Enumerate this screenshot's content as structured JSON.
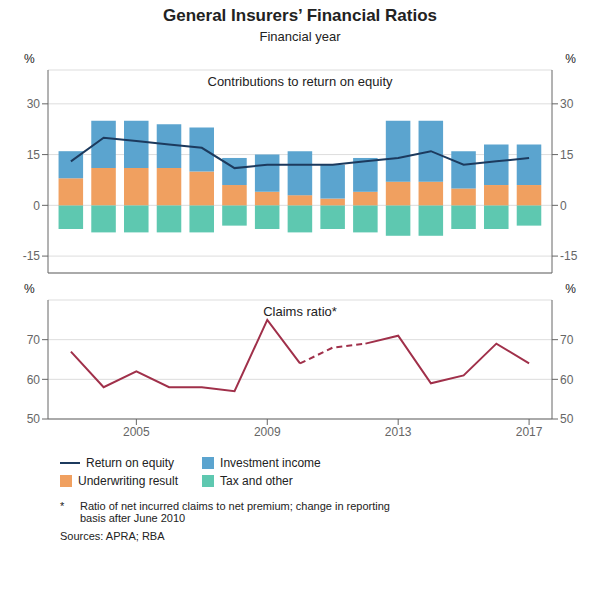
{
  "chart_data": [
    {
      "type": "bar",
      "title": "General Insurers’ Financial Ratios",
      "subtitle": "Financial year",
      "annotations": [
        "Contributions to return on equity"
      ],
      "x": [
        2003,
        2004,
        2005,
        2006,
        2007,
        2008,
        2009,
        2010,
        2011,
        2012,
        2013,
        2014,
        2015,
        2016,
        2017
      ],
      "series": [
        {
          "name": "Return on equity",
          "type": "line",
          "color": "#1C3A5E",
          "values": [
            13,
            20,
            19,
            18,
            17,
            11,
            12,
            12,
            12,
            13,
            14,
            16,
            12,
            13,
            14
          ]
        },
        {
          "name": "Investment income",
          "type": "bar",
          "color": "#5BA4CF",
          "values": [
            8,
            14,
            14,
            13,
            13,
            8,
            11,
            13,
            10,
            10,
            18,
            18,
            11,
            12,
            12
          ]
        },
        {
          "name": "Underwriting result",
          "type": "bar",
          "color": "#F0A060",
          "values": [
            8,
            11,
            11,
            11,
            10,
            6,
            4,
            3,
            2,
            4,
            7,
            7,
            5,
            6,
            6
          ]
        },
        {
          "name": "Tax and other",
          "type": "bar",
          "color": "#5EC8B0",
          "values": [
            -7,
            -8,
            -8,
            -8,
            -8,
            -6,
            -7,
            -8,
            -7,
            -8,
            -9,
            -9,
            -7,
            -7,
            -6
          ]
        }
      ],
      "stacked": true,
      "xlim": [
        2002.3,
        2017.7
      ],
      "ylim": [
        -20,
        40
      ],
      "yticks": [
        -15,
        0,
        15,
        30
      ],
      "ylabel": "%",
      "y2lim": [
        -20,
        40
      ],
      "y2ticks": [
        -15,
        0,
        15,
        30
      ],
      "y2label": "%",
      "grid": true,
      "tick_labels": "y",
      "legend": "bottom"
    },
    {
      "type": "line",
      "annotations": [
        "Claims ratio*",
        "*",
        "Ratio of net incurred claims to net premium; change in reporting\nbasis after June 2010",
        "Sources: APRA; RBA"
      ],
      "x": [
        2003,
        2004,
        2005,
        2006,
        2007,
        2008,
        2009,
        2010,
        2011,
        2012,
        2013,
        2014,
        2015,
        2016,
        2017
      ],
      "series": [
        {
          "color": "#A0304A",
          "line_style": "solid",
          "values": [
            67,
            58,
            62,
            58,
            58,
            57,
            75,
            64,
            null,
            null,
            null,
            null,
            null,
            null,
            null
          ]
        },
        {
          "color": "#A0304A",
          "line_style": "dashed",
          "values": [
            null,
            null,
            null,
            null,
            null,
            null,
            null,
            64,
            68,
            69,
            null,
            null,
            null,
            null,
            null
          ]
        },
        {
          "color": "#A0304A",
          "line_style": "solid",
          "values": [
            null,
            null,
            null,
            null,
            null,
            null,
            null,
            null,
            null,
            69,
            71,
            59,
            61,
            69,
            64
          ]
        }
      ],
      "xlim": [
        2002.3,
        2017.7
      ],
      "xticks": [
        2005,
        2009,
        2013,
        2017
      ],
      "ylim": [
        50,
        80
      ],
      "yticks": [
        50,
        60,
        70
      ],
      "ylabel": "%",
      "y2lim": [
        50,
        80
      ],
      "y2ticks": [
        50,
        60,
        70
      ],
      "y2label": "%",
      "grid": true
    }
  ]
}
